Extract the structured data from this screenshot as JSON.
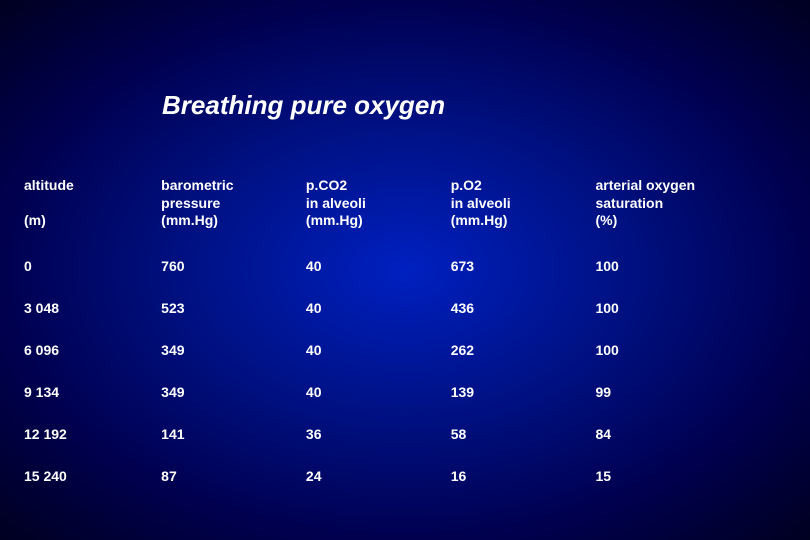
{
  "title": "Breathing pure oxygen",
  "table": {
    "headers": [
      {
        "l1": "altitude",
        "l2": "",
        "l3": "(m)"
      },
      {
        "l1": "barometric",
        "l2": "pressure",
        "l3": "(mm.Hg)"
      },
      {
        "l1": "p.CO2",
        "l2": "in alveoli",
        "l3": "(mm.Hg)"
      },
      {
        "l1": "p.O2",
        "l2": "in alveoli",
        "l3": "(mm.Hg)"
      },
      {
        "l1": "arterial oxygen",
        "l2": "saturation",
        "l3": "(%)"
      }
    ],
    "rows": [
      [
        "0",
        "760",
        "40",
        "673",
        "100"
      ],
      [
        "3 048",
        "523",
        "40",
        "436",
        "100"
      ],
      [
        "6 096",
        "349",
        "40",
        "262",
        "100"
      ],
      [
        "9 134",
        "349",
        "40",
        "139",
        "99"
      ],
      [
        "12 192",
        "141",
        "36",
        "58",
        "84"
      ],
      [
        "15 240",
        "87",
        "24",
        "16",
        "15"
      ]
    ]
  },
  "style": {
    "title_fontsize": 26,
    "cell_fontsize": 14,
    "text_color": "#ffffff",
    "bg_gradient_center": "#0020c0",
    "bg_gradient_edge": "#000020"
  }
}
